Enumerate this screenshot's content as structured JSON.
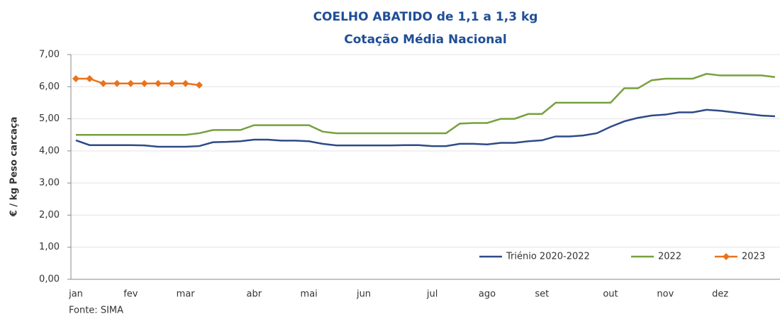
{
  "chart_data": {
    "type": "line",
    "title": "COELHO ABATIDO de 1,1 a 1,3 kg",
    "subtitle": "Cotação Média Nacional",
    "y_label": "€ / kg Peso carcaça",
    "source": "Fonte: SIMA",
    "categories": [
      "jan",
      null,
      null,
      null,
      "fev",
      null,
      null,
      null,
      "mar",
      null,
      null,
      null,
      null,
      "abr",
      null,
      null,
      null,
      "mai",
      null,
      null,
      null,
      "jun",
      null,
      null,
      null,
      null,
      "jul",
      null,
      null,
      null,
      "ago",
      null,
      null,
      null,
      "set",
      null,
      null,
      null,
      null,
      "out",
      null,
      null,
      null,
      "nov",
      null,
      null,
      null,
      "dez",
      null,
      null,
      null,
      null
    ],
    "series": [
      {
        "name": "Triénio 2020-2022",
        "color": "#2e4a87",
        "values": [
          4.33,
          4.18,
          4.18,
          4.18,
          4.18,
          4.17,
          4.13,
          4.13,
          4.13,
          4.15,
          4.27,
          4.28,
          4.3,
          4.35,
          4.35,
          4.32,
          4.32,
          4.3,
          4.22,
          4.17,
          4.17,
          4.17,
          4.17,
          4.17,
          4.18,
          4.18,
          4.15,
          4.15,
          4.22,
          4.22,
          4.2,
          4.25,
          4.25,
          4.3,
          4.33,
          4.45,
          4.45,
          4.48,
          4.55,
          4.75,
          4.92,
          5.03,
          5.1,
          5.13,
          5.2,
          5.2,
          5.28,
          5.25,
          5.2,
          5.15,
          5.1,
          5.08
        ]
      },
      {
        "name": "2022",
        "color": "#77a03c",
        "values": [
          4.5,
          4.5,
          4.5,
          4.5,
          4.5,
          4.5,
          4.5,
          4.5,
          4.5,
          4.55,
          4.65,
          4.65,
          4.65,
          4.8,
          4.8,
          4.8,
          4.8,
          4.8,
          4.6,
          4.55,
          4.55,
          4.55,
          4.55,
          4.55,
          4.55,
          4.55,
          4.55,
          4.55,
          4.85,
          4.87,
          4.87,
          5.0,
          5.0,
          5.15,
          5.15,
          5.5,
          5.5,
          5.5,
          5.5,
          5.5,
          5.95,
          5.95,
          6.2,
          6.25,
          6.25,
          6.25,
          6.4,
          6.35,
          6.35,
          6.35,
          6.35,
          6.3
        ]
      },
      {
        "name": "2023",
        "color": "#e9731c",
        "marker": "diamond",
        "values": [
          6.25,
          6.25,
          6.1,
          6.1,
          6.1,
          6.1,
          6.1,
          6.1,
          6.1,
          6.05,
          null,
          null,
          null,
          null,
          null,
          null,
          null,
          null,
          null,
          null,
          null,
          null,
          null,
          null,
          null,
          null,
          null,
          null,
          null,
          null,
          null,
          null,
          null,
          null,
          null,
          null,
          null,
          null,
          null,
          null,
          null,
          null,
          null,
          null,
          null,
          null,
          null,
          null,
          null,
          null,
          null,
          null
        ]
      }
    ],
    "ylim": [
      0,
      7
    ],
    "yticks": [
      {
        "value": 0,
        "label": "0,00"
      },
      {
        "value": 1,
        "label": "1,00"
      },
      {
        "value": 2,
        "label": "2,00"
      },
      {
        "value": 3,
        "label": "3,00"
      },
      {
        "value": 4,
        "label": "4,00"
      },
      {
        "value": 5,
        "label": "5,00"
      },
      {
        "value": 6,
        "label": "6,00"
      },
      {
        "value": 7,
        "label": "7,00"
      }
    ],
    "grid": true,
    "legend": "bottom-right"
  }
}
